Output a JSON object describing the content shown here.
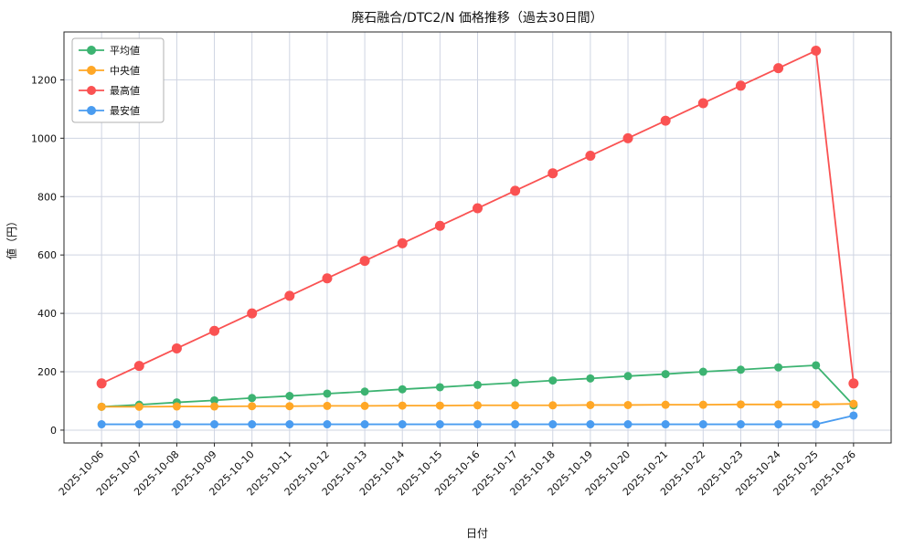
{
  "colors": {
    "background": "#ffffff",
    "grid": "#cfd4e2",
    "axis": "#262626",
    "text": "#111111",
    "legend_border": "#b0b0b0",
    "legend_bg": "#ffffff"
  },
  "chart_data": {
    "type": "line",
    "title": "廃石融合/DTC2/N 価格推移（過去30日間）",
    "xlabel": "日付",
    "ylabel": "値（円）",
    "ylim": [
      -44,
      1364
    ],
    "yticks": [
      0,
      200,
      400,
      600,
      800,
      1000,
      1200
    ],
    "grid": true,
    "legend_position": "top-left",
    "categories": [
      "2025-10-06",
      "2025-10-07",
      "2025-10-08",
      "2025-10-09",
      "2025-10-10",
      "2025-10-11",
      "2025-10-12",
      "2025-10-13",
      "2025-10-14",
      "2025-10-15",
      "2025-10-16",
      "2025-10-17",
      "2025-10-18",
      "2025-10-19",
      "2025-10-20",
      "2025-10-21",
      "2025-10-22",
      "2025-10-23",
      "2025-10-24",
      "2025-10-25",
      "2025-10-26"
    ],
    "series": [
      {
        "key": "average",
        "name": "平均値",
        "color": "#3cb371",
        "marker_r": 4.5,
        "values": [
          80,
          87,
          95,
          102,
          110,
          117,
          125,
          132,
          140,
          147,
          155,
          162,
          170,
          177,
          185,
          192,
          200,
          207,
          215,
          222,
          85
        ]
      },
      {
        "key": "median",
        "name": "中央値",
        "color": "#ffa726",
        "marker_r": 4.5,
        "values": [
          80,
          80,
          81,
          81,
          82,
          82,
          83,
          83,
          84,
          84,
          85,
          85,
          85,
          86,
          86,
          87,
          87,
          88,
          88,
          88,
          90
        ]
      },
      {
        "key": "max",
        "name": "最高値",
        "color": "#fa5252",
        "marker_r": 5.5,
        "values": [
          160,
          220,
          280,
          340,
          400,
          460,
          520,
          580,
          640,
          700,
          760,
          820,
          880,
          940,
          1000,
          1060,
          1120,
          1180,
          1240,
          1300,
          160
        ]
      },
      {
        "key": "min",
        "name": "最安値",
        "color": "#4a9cf0",
        "marker_r": 4.5,
        "values": [
          20,
          20,
          20,
          20,
          20,
          20,
          20,
          20,
          20,
          20,
          20,
          20,
          20,
          20,
          20,
          20,
          20,
          20,
          20,
          20,
          50
        ]
      }
    ]
  }
}
